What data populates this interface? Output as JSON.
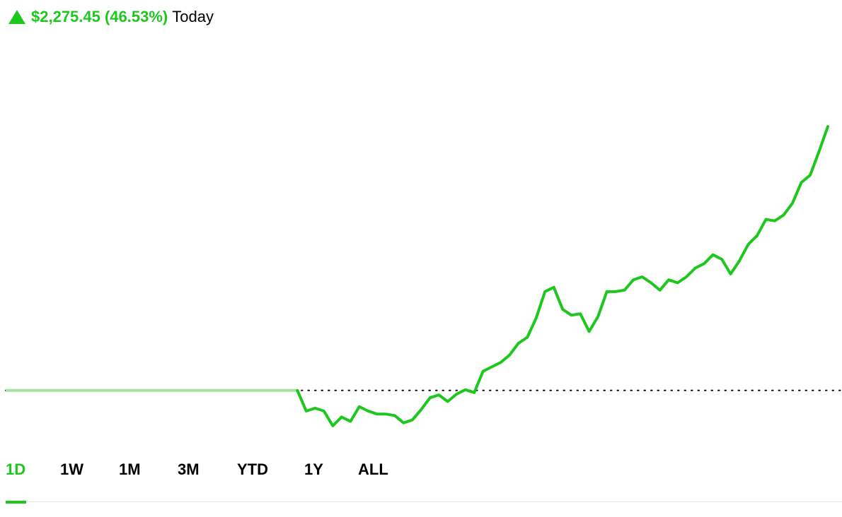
{
  "header": {
    "direction_icon": "triangle-up-icon",
    "change_text": "$2,275.45 (46.53%)",
    "period_text": "Today"
  },
  "colors": {
    "accent": "#1ec71e",
    "baseline_dots": "#000000",
    "prior_line": "#a3e6a3",
    "tab_inactive": "#000000",
    "divider": "#e6e6e6"
  },
  "tabs": [
    {
      "label": "1D",
      "active": true
    },
    {
      "label": "1W",
      "active": false
    },
    {
      "label": "1M",
      "active": false
    },
    {
      "label": "3M",
      "active": false
    },
    {
      "label": "YTD",
      "active": false
    },
    {
      "label": "1Y",
      "active": false
    },
    {
      "label": "ALL",
      "active": false
    }
  ],
  "chart_data": {
    "type": "line",
    "baseline": 0,
    "y_range": [
      -2500,
      18000
    ],
    "pre_market_points": 33,
    "values": [
      0,
      0,
      0,
      0,
      0,
      0,
      0,
      0,
      0,
      0,
      0,
      0,
      0,
      0,
      0,
      0,
      0,
      0,
      0,
      0,
      0,
      0,
      0,
      0,
      0,
      0,
      0,
      0,
      0,
      0,
      0,
      0,
      0,
      0,
      -1400,
      -1200,
      -1400,
      -2400,
      -1800,
      -2100,
      -1100,
      -1400,
      -1600,
      -1600,
      -1700,
      -2200,
      -2000,
      -1300,
      -500,
      -300,
      -750,
      -250,
      50,
      -150,
      1300,
      1600,
      1900,
      2400,
      3200,
      3600,
      4900,
      6700,
      7000,
      5500,
      5100,
      5200,
      4000,
      5000,
      6700,
      6700,
      6800,
      7500,
      7700,
      7300,
      6800,
      7500,
      7300,
      7700,
      8300,
      8600,
      9200,
      8900,
      7900,
      8800,
      9900,
      10500,
      11600,
      11500,
      11900,
      12700,
      14100,
      14600,
      16200,
      17900
    ]
  }
}
